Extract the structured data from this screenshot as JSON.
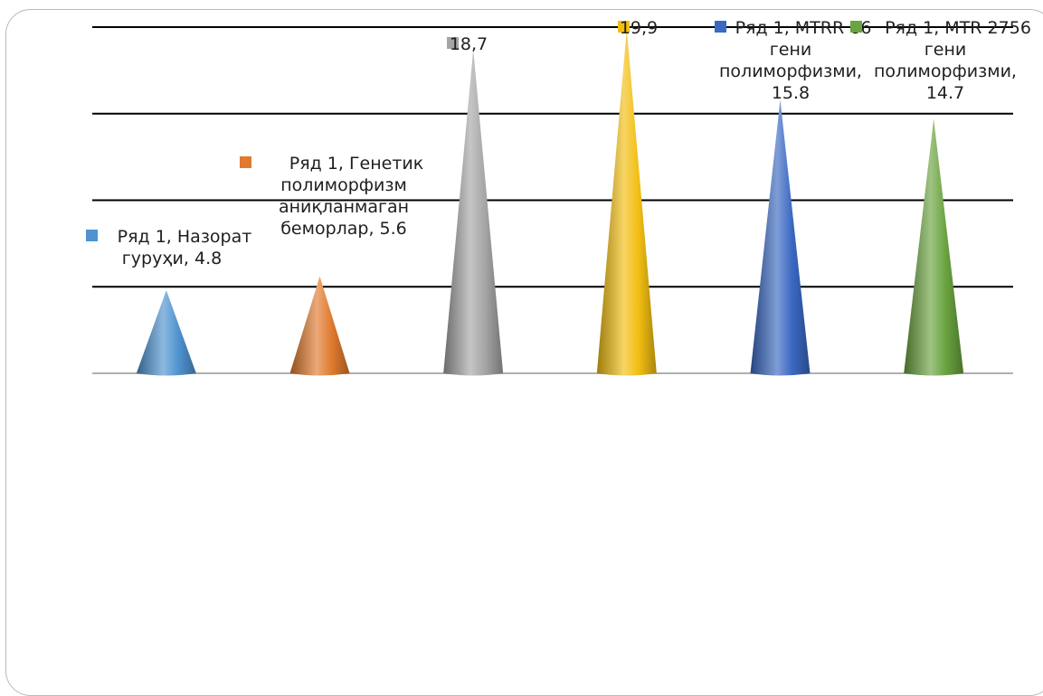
{
  "chart_data": {
    "type": "bar",
    "bar_shape": "cone",
    "categories": [
      "Назорат гуруҳи",
      "Генетик полиморфизм аниқланмаган беморлар",
      "",
      "",
      "MTRR 66 гени полиморфизми",
      "MTR 2756 гени полиморфизми"
    ],
    "series": [
      {
        "name": "Ряд 1",
        "values": [
          4.8,
          5.6,
          18.7,
          19.9,
          15.8,
          14.7
        ],
        "colors": [
          "#4f93cf",
          "#e07a2e",
          "#a5a5a5",
          "#f2be12",
          "#3a68c2",
          "#6aa33f"
        ]
      }
    ],
    "data_labels": [
      [
        "Ряд 1, Назорат",
        "гуруҳи, 4.8"
      ],
      [
        "Ряд 1, Генетик",
        "полиморфизм",
        "аниқланмаган",
        "беморлар, 5.6"
      ],
      [
        "18,7"
      ],
      [
        "19,9"
      ],
      [
        "Ряд 1, MTRR 66",
        "гени",
        "полиморфизми,",
        "15.8"
      ],
      [
        "Ряд 1, MTR 2756",
        "гени",
        "полиморфизми,",
        "14.7"
      ]
    ],
    "title": "",
    "xlabel": "",
    "ylabel": "",
    "ylim": [
      0,
      20
    ],
    "y_gridlines": [
      5,
      10,
      15,
      20
    ],
    "grid": true,
    "legend": "none"
  }
}
